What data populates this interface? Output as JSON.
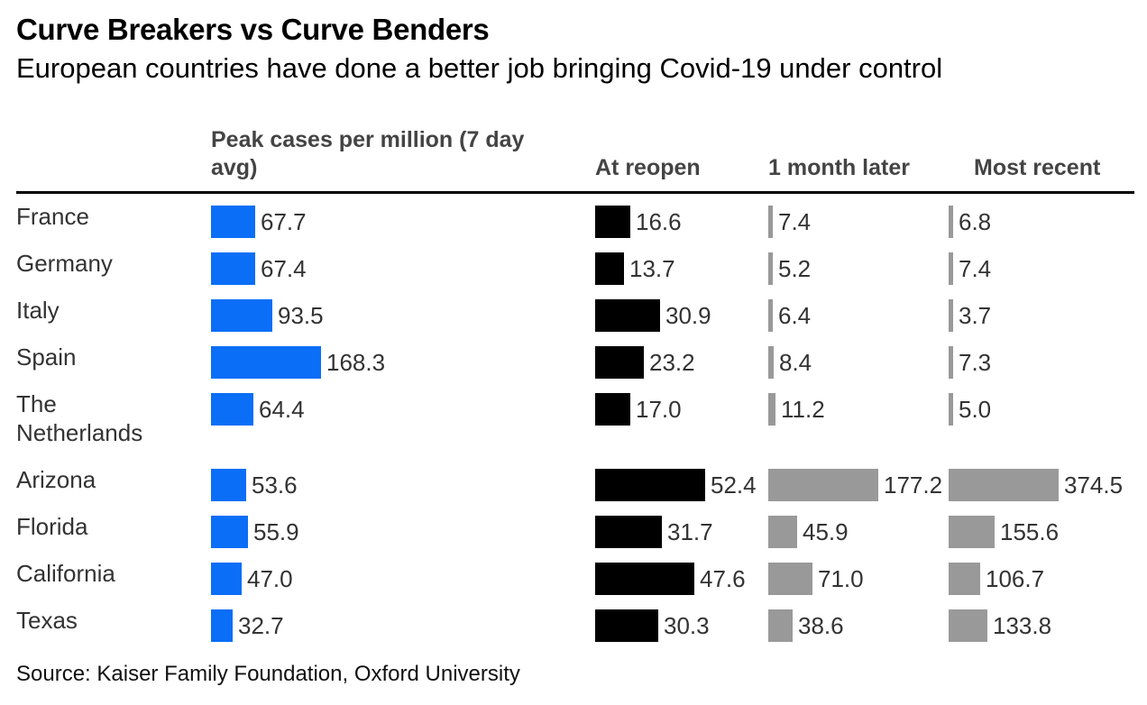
{
  "title": "Curve Breakers vs Curve Benders",
  "subtitle": "European countries have done a better job bringing Covid-19 under control",
  "source": "Source: Kaiser Family Foundation, Oxford University",
  "colors": {
    "peak": "#0a6ef7",
    "reopen": "#000000",
    "later": "#999999",
    "recent": "#999999"
  },
  "chart_data": {
    "type": "table",
    "title": "Curve Breakers vs Curve Benders",
    "subtitle": "European countries have done a better job bringing Covid-19 under control",
    "columns": [
      {
        "key": "peak",
        "label_line1": "Peak cases per million (7 day",
        "label_line2": "avg)"
      },
      {
        "key": "reopen",
        "label": "At reopen"
      },
      {
        "key": "later",
        "label": "1 month later"
      },
      {
        "key": "recent",
        "label": "Most recent"
      }
    ],
    "rows": [
      {
        "name": "France",
        "peak": 67.7,
        "reopen": 16.6,
        "later": 7.4,
        "recent": 6.8,
        "labels": {
          "peak": "67.7",
          "reopen": "16.6",
          "later": "7.4",
          "recent": "6.8"
        }
      },
      {
        "name": "Germany",
        "peak": 67.4,
        "reopen": 13.7,
        "later": 5.2,
        "recent": 7.4,
        "labels": {
          "peak": "67.4",
          "reopen": "13.7",
          "later": "5.2",
          "recent": "7.4"
        }
      },
      {
        "name": "Italy",
        "peak": 93.5,
        "reopen": 30.9,
        "later": 6.4,
        "recent": 3.7,
        "labels": {
          "peak": "93.5",
          "reopen": "30.9",
          "later": "6.4",
          "recent": "3.7"
        }
      },
      {
        "name": "Spain",
        "peak": 168.3,
        "reopen": 23.2,
        "later": 8.4,
        "recent": 7.3,
        "labels": {
          "peak": "168.3",
          "reopen": "23.2",
          "later": "8.4",
          "recent": "7.3"
        }
      },
      {
        "name": "The Netherlands",
        "name_lines": [
          "The",
          "Netherlands"
        ],
        "peak": 64.4,
        "reopen": 17.0,
        "later": 11.2,
        "recent": 5.0,
        "labels": {
          "peak": "64.4",
          "reopen": "17.0",
          "later": "11.2",
          "recent": "5.0"
        }
      },
      {
        "name": "Arizona",
        "peak": 53.6,
        "reopen": 52.4,
        "later": 177.2,
        "recent": 374.5,
        "labels": {
          "peak": "53.6",
          "reopen": "52.4",
          "later": "177.2",
          "recent": "374.5"
        }
      },
      {
        "name": "Florida",
        "peak": 55.9,
        "reopen": 31.7,
        "later": 45.9,
        "recent": 155.6,
        "labels": {
          "peak": "55.9",
          "reopen": "31.7",
          "later": "45.9",
          "recent": "155.6"
        }
      },
      {
        "name": "California",
        "peak": 47.0,
        "reopen": 47.6,
        "later": 71.0,
        "recent": 106.7,
        "labels": {
          "peak": "47.0",
          "reopen": "47.6",
          "later": "71.0",
          "recent": "106.7"
        }
      },
      {
        "name": "Texas",
        "peak": 32.7,
        "reopen": 30.3,
        "later": 38.6,
        "recent": 133.8,
        "labels": {
          "peak": "32.7",
          "reopen": "30.3",
          "later": "38.6",
          "recent": "133.8"
        }
      }
    ]
  }
}
